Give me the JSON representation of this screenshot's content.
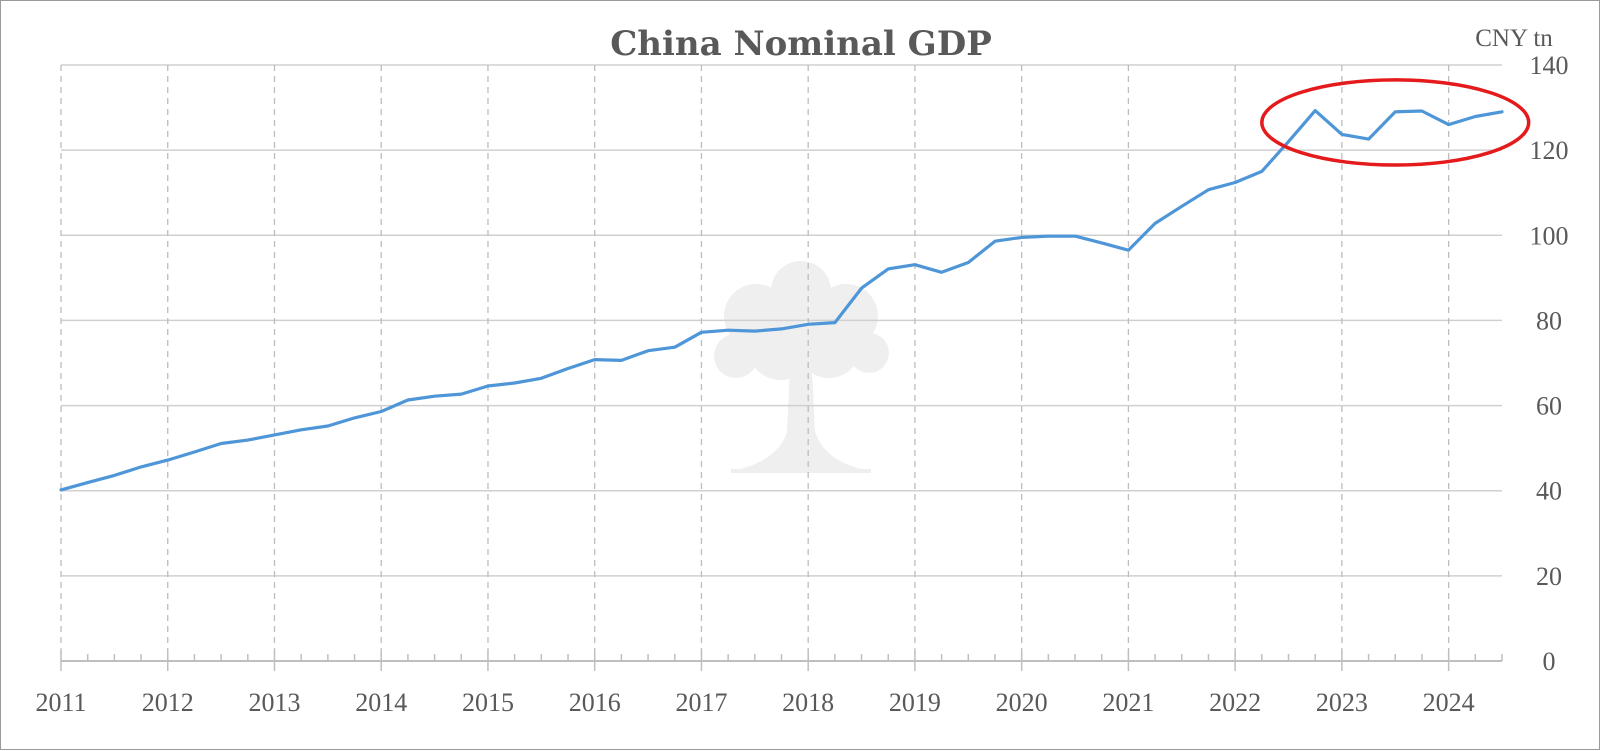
{
  "chart_data": {
    "type": "line",
    "title": "China Nominal GDP",
    "ylabel": "CNY tn",
    "xlabel": "",
    "y_axis_side": "right",
    "ylim": [
      0,
      140
    ],
    "yticks": [
      "0",
      "20",
      "40",
      "60",
      "80",
      "100",
      "120",
      "140"
    ],
    "xlim": [
      2011.0,
      2024.5
    ],
    "xticks": [
      "2011",
      "2012",
      "2013",
      "2014",
      "2015",
      "2016",
      "2017",
      "2018",
      "2019",
      "2020",
      "2021",
      "2022",
      "2023",
      "2024"
    ],
    "grid": {
      "horizontal": "solid",
      "vertical": "dashed"
    },
    "series_color": "#4e96d8",
    "x": [
      2011.0,
      2011.25,
      2011.5,
      2011.75,
      2012.0,
      2012.25,
      2012.5,
      2012.75,
      2013.0,
      2013.25,
      2013.5,
      2013.75,
      2014.0,
      2014.25,
      2014.5,
      2014.75,
      2015.0,
      2015.25,
      2015.5,
      2015.75,
      2016.0,
      2016.25,
      2016.5,
      2016.75,
      2017.0,
      2017.25,
      2017.5,
      2017.75,
      2018.0,
      2018.25,
      2018.5,
      2018.75,
      2019.0,
      2019.25,
      2019.5,
      2019.75,
      2020.0,
      2020.25,
      2020.5,
      2020.75,
      2021.0,
      2021.25,
      2021.5,
      2021.75,
      2022.0,
      2022.25,
      2022.5,
      2022.75,
      2023.0,
      2023.25,
      2023.5,
      2023.75,
      2024.0,
      2024.25,
      2024.5
    ],
    "values": [
      40.2,
      41.9,
      43.6,
      45.6,
      47.2,
      49.1,
      51.1,
      51.9,
      53.1,
      54.3,
      55.2,
      57.1,
      58.6,
      61.3,
      62.2,
      62.7,
      64.6,
      65.3,
      66.4,
      68.7,
      70.8,
      70.6,
      72.9,
      73.7,
      77.2,
      77.7,
      77.5,
      78.0,
      79.1,
      79.5,
      87.6,
      92.1,
      93.1,
      91.3,
      93.6,
      98.6,
      99.5,
      99.8,
      99.8,
      98.2,
      96.5,
      102.8,
      106.8,
      110.7,
      112.4,
      115.0,
      122.0,
      129.3,
      123.7,
      122.6,
      129.0,
      129.2,
      126.0,
      127.9,
      129.0
    ],
    "annotations": [
      {
        "type": "ellipse",
        "color": "#e41a1c",
        "x_center": 2023.5,
        "x_half_width": 1.25,
        "y_center": 126.5,
        "y_half_height": 10
      }
    ]
  }
}
